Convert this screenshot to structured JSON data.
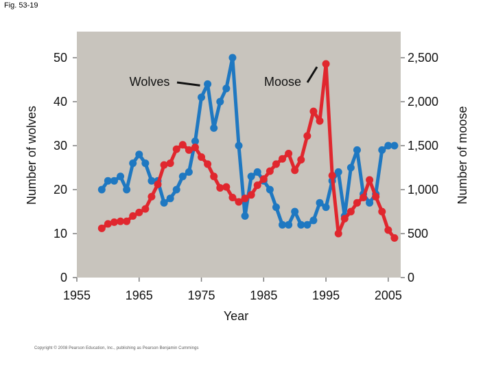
{
  "figure_label": "Fig. 53-19",
  "copyright": "Copyright © 2008 Pearson Education, Inc., publishing as Pearson Benjamin Cummings",
  "colors": {
    "plot_bg": "#c8c4bd",
    "wolves": "#1f78c1",
    "moose": "#e0272e",
    "axis": "#7a7a7a"
  },
  "chart_data": {
    "type": "line",
    "title": "",
    "xlabel": "Year",
    "ylabel": "Number of wolves",
    "y2label": "Number of moose",
    "xlim": [
      1955,
      2007
    ],
    "ylim": [
      0,
      52
    ],
    "y2lim": [
      0,
      2600
    ],
    "xticks": [
      1955,
      1965,
      1975,
      1985,
      1995,
      2005
    ],
    "xtick_labels": [
      "1955",
      "1965",
      "1975",
      "1985",
      "1995",
      "2005"
    ],
    "yticks": [
      0,
      10,
      20,
      30,
      40,
      50
    ],
    "ytick_labels": [
      "0",
      "10",
      "20",
      "30",
      "40",
      "50"
    ],
    "y2ticks": [
      0,
      500,
      1000,
      1500,
      2000,
      2500
    ],
    "y2tick_labels": [
      "0",
      "500",
      "1,000",
      "1,500",
      "2,000",
      "2,500"
    ],
    "grid": false,
    "annotations": [
      {
        "text": "Wolves",
        "series": "Wolves",
        "target": [
          1975,
          44
        ]
      },
      {
        "text": "Moose",
        "series": "Moose",
        "target": [
          1994,
          2380
        ]
      }
    ],
    "series": [
      {
        "name": "Wolves",
        "axis": "left",
        "x": [
          1959,
          1960,
          1961,
          1962,
          1963,
          1964,
          1965,
          1966,
          1967,
          1968,
          1969,
          1970,
          1971,
          1972,
          1973,
          1974,
          1975,
          1976,
          1977,
          1978,
          1979,
          1980,
          1981,
          1982,
          1983,
          1984,
          1985,
          1986,
          1987,
          1988,
          1989,
          1990,
          1991,
          1992,
          1993,
          1994,
          1995,
          1996,
          1997,
          1998,
          1999,
          2000,
          2001,
          2002,
          2003,
          2004,
          2005,
          2006
        ],
        "y": [
          20,
          22,
          22,
          23,
          20,
          26,
          28,
          26,
          22,
          22,
          17,
          18,
          20,
          23,
          24,
          31,
          41,
          44,
          34,
          40,
          43,
          50,
          30,
          14,
          23,
          24,
          22,
          20,
          16,
          12,
          12,
          15,
          12,
          12,
          13,
          17,
          16,
          22,
          24,
          14,
          25,
          29,
          19,
          17,
          19,
          29,
          30,
          30
        ]
      },
      {
        "name": "Moose",
        "axis": "right",
        "x": [
          1959,
          1960,
          1961,
          1962,
          1963,
          1964,
          1965,
          1966,
          1967,
          1968,
          1969,
          1970,
          1971,
          1972,
          1973,
          1974,
          1975,
          1976,
          1977,
          1978,
          1979,
          1980,
          1981,
          1982,
          1983,
          1984,
          1985,
          1986,
          1987,
          1988,
          1989,
          1990,
          1991,
          1992,
          1993,
          1994,
          1995,
          1996,
          1997,
          1998,
          1999,
          2000,
          2001,
          2002,
          2003,
          2004,
          2005,
          2006
        ],
        "y": [
          560,
          610,
          630,
          640,
          640,
          700,
          740,
          780,
          920,
          1060,
          1280,
          1300,
          1460,
          1510,
          1450,
          1480,
          1370,
          1290,
          1150,
          1020,
          1030,
          910,
          860,
          900,
          940,
          1050,
          1120,
          1210,
          1290,
          1350,
          1410,
          1220,
          1340,
          1610,
          1890,
          1780,
          2430,
          1160,
          500,
          670,
          750,
          850,
          910,
          1110,
          920,
          750,
          540,
          450
        ]
      }
    ]
  }
}
